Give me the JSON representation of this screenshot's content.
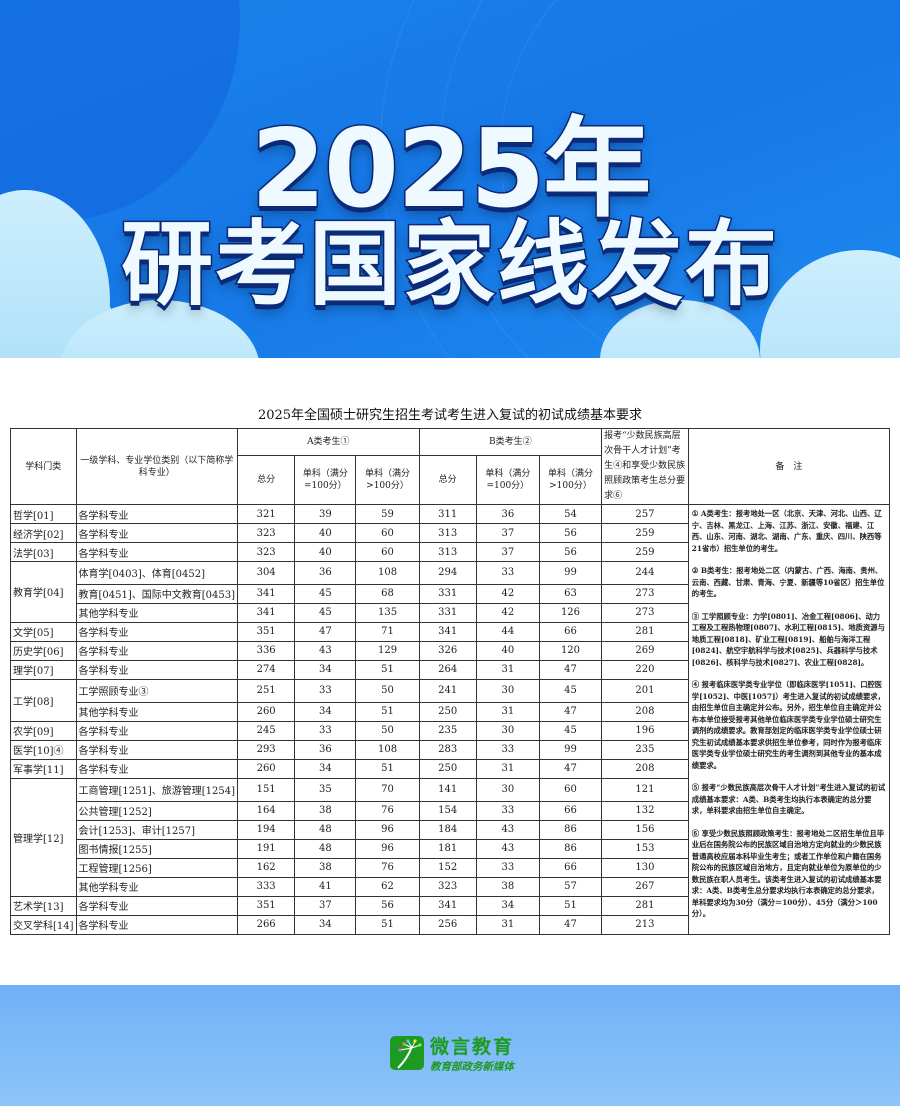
{
  "hero": {
    "line1": "2025年",
    "line2": "研考国家线发布"
  },
  "title": "2025年全国硕士研究生招生考试考生进入复试的初试成绩基本要求",
  "headers": {
    "category": "学科门类",
    "discipline": "一级学科、专业学位类别（以下简称学科专业）",
    "a_group": "A类考生①",
    "b_group": "B类考生②",
    "total": "总分",
    "single_100": "单科（满分=100分）",
    "single_gt100": "单科（满分>100分）",
    "minority": "报考“少数民族高层次骨干人才计划”考生④和享受少数民族照顾政策考生总分要求⑥",
    "notes": "备　注"
  },
  "groups": [
    {
      "category": "哲学[01]",
      "rows": [
        [
          "各学科专业",
          "321",
          "39",
          "59",
          "311",
          "36",
          "54",
          "257"
        ]
      ]
    },
    {
      "category": "经济学[02]",
      "rows": [
        [
          "各学科专业",
          "323",
          "40",
          "60",
          "313",
          "37",
          "56",
          "259"
        ]
      ]
    },
    {
      "category": "法学[03]",
      "rows": [
        [
          "各学科专业",
          "323",
          "40",
          "60",
          "313",
          "37",
          "56",
          "259"
        ]
      ]
    },
    {
      "category": "教育学[04]",
      "rows": [
        [
          "体育学[0403]、体育[0452]",
          "304",
          "36",
          "108",
          "294",
          "33",
          "99",
          "244"
        ],
        [
          "教育[0451]、国际中文教育[0453]",
          "341",
          "45",
          "68",
          "331",
          "42",
          "63",
          "273"
        ],
        [
          "其他学科专业",
          "341",
          "45",
          "135",
          "331",
          "42",
          "126",
          "273"
        ]
      ]
    },
    {
      "category": "文学[05]",
      "rows": [
        [
          "各学科专业",
          "351",
          "47",
          "71",
          "341",
          "44",
          "66",
          "281"
        ]
      ]
    },
    {
      "category": "历史学[06]",
      "rows": [
        [
          "各学科专业",
          "336",
          "43",
          "129",
          "326",
          "40",
          "120",
          "269"
        ]
      ]
    },
    {
      "category": "理学[07]",
      "rows": [
        [
          "各学科专业",
          "274",
          "34",
          "51",
          "264",
          "31",
          "47",
          "220"
        ]
      ]
    },
    {
      "category": "工学[08]",
      "rows": [
        [
          "工学照顾专业③",
          "251",
          "33",
          "50",
          "241",
          "30",
          "45",
          "201"
        ],
        [
          "其他学科专业",
          "260",
          "34",
          "51",
          "250",
          "31",
          "47",
          "208"
        ]
      ]
    },
    {
      "category": "农学[09]",
      "rows": [
        [
          "各学科专业",
          "245",
          "33",
          "50",
          "235",
          "30",
          "45",
          "196"
        ]
      ]
    },
    {
      "category": "医学[10]④",
      "rows": [
        [
          "各学科专业",
          "293",
          "36",
          "108",
          "283",
          "33",
          "99",
          "235"
        ]
      ]
    },
    {
      "category": "军事学[11]",
      "rows": [
        [
          "各学科专业",
          "260",
          "34",
          "51",
          "250",
          "31",
          "47",
          "208"
        ]
      ]
    },
    {
      "category": "管理学[12]",
      "rows": [
        [
          "工商管理[1251]、旅游管理[1254]",
          "151",
          "35",
          "70",
          "141",
          "30",
          "60",
          "121"
        ],
        [
          "公共管理[1252]",
          "164",
          "38",
          "76",
          "154",
          "33",
          "66",
          "132"
        ],
        [
          "会计[1253]、审计[1257]",
          "194",
          "48",
          "96",
          "184",
          "43",
          "86",
          "156"
        ],
        [
          "图书情报[1255]",
          "191",
          "48",
          "96",
          "181",
          "43",
          "86",
          "153"
        ],
        [
          "工程管理[1256]",
          "162",
          "38",
          "76",
          "152",
          "33",
          "66",
          "130"
        ],
        [
          "其他学科专业",
          "333",
          "41",
          "62",
          "323",
          "38",
          "57",
          "267"
        ]
      ]
    },
    {
      "category": "艺术学[13]",
      "rows": [
        [
          "各学科专业",
          "351",
          "37",
          "56",
          "341",
          "34",
          "51",
          "281"
        ]
      ]
    },
    {
      "category": "交叉学科[14]",
      "rows": [
        [
          "各学科专业",
          "266",
          "34",
          "51",
          "256",
          "31",
          "47",
          "213"
        ]
      ]
    }
  ],
  "notes": [
    "① A类考生：报考地处一区（北京、天津、河北、山西、辽宁、吉林、黑龙江、上海、江苏、浙江、安徽、福建、江西、山东、河南、湖北、湖南、广东、重庆、四川、陕西等21省市）招生单位的考生。",
    "② B类考生：报考地处二区（内蒙古、广西、海南、贵州、云南、西藏、甘肃、青海、宁夏、新疆等10省区）招生单位的考生。",
    "③ 工学照顾专业：力学[0801]、冶金工程[0806]、动力工程及工程热物理[0807]、水利工程[0815]、地质资源与地质工程[0818]、矿业工程[0819]、船舶与海洋工程[0824]、航空宇航科学与技术[0825]、兵器科学与技术[0826]、核科学与技术[0827]、农业工程[0828]。",
    "④ 报考临床医学类专业学位（即临床医学[1051]、口腔医学[1052]、中医[1057]）考生进入复试的初试成绩要求，由招生单位自主确定并公布。另外，招生单位自主确定并公布本单位接受报考其他单位临床医学类专业学位硕士研究生调剂的成绩要求。教育部划定的临床医学类专业学位硕士研究生初试成绩基本要求供招生单位参考，同时作为报考临床医学类专业学位硕士研究生的考生调剂到其他专业的基本成绩要求。",
    "⑤ 报考“少数民族高层次骨干人才计划”考生进入复试的初试成绩基本要求：A类、B类考生均执行本表确定的总分要求，单科要求由招生单位自主确定。",
    "⑥ 享受少数民族照顾政策考生：报考地处二区招生单位且毕业后在国务院公布的民族区域自治地方定向就业的少数民族普通高校应届本科毕业生考生；或者工作单位和户籍在国务院公布的民族区域自治地方，且定向就业单位为原单位的少数民族在职人员考生。该类考生进入复试的初试成绩基本要求：A类、B类考生总分要求均执行本表确定的总分要求，单科要求均为30分（满分＝100分）、45分（满分＞100分）。"
  ],
  "footer": {
    "logo_name": "微言教育",
    "logo_sub": "教育部政务新媒体"
  },
  "colors": {
    "hero_blue": "#1677e6",
    "logo_green": "#1d9a22",
    "footer_blue": "#8ec5fa"
  }
}
